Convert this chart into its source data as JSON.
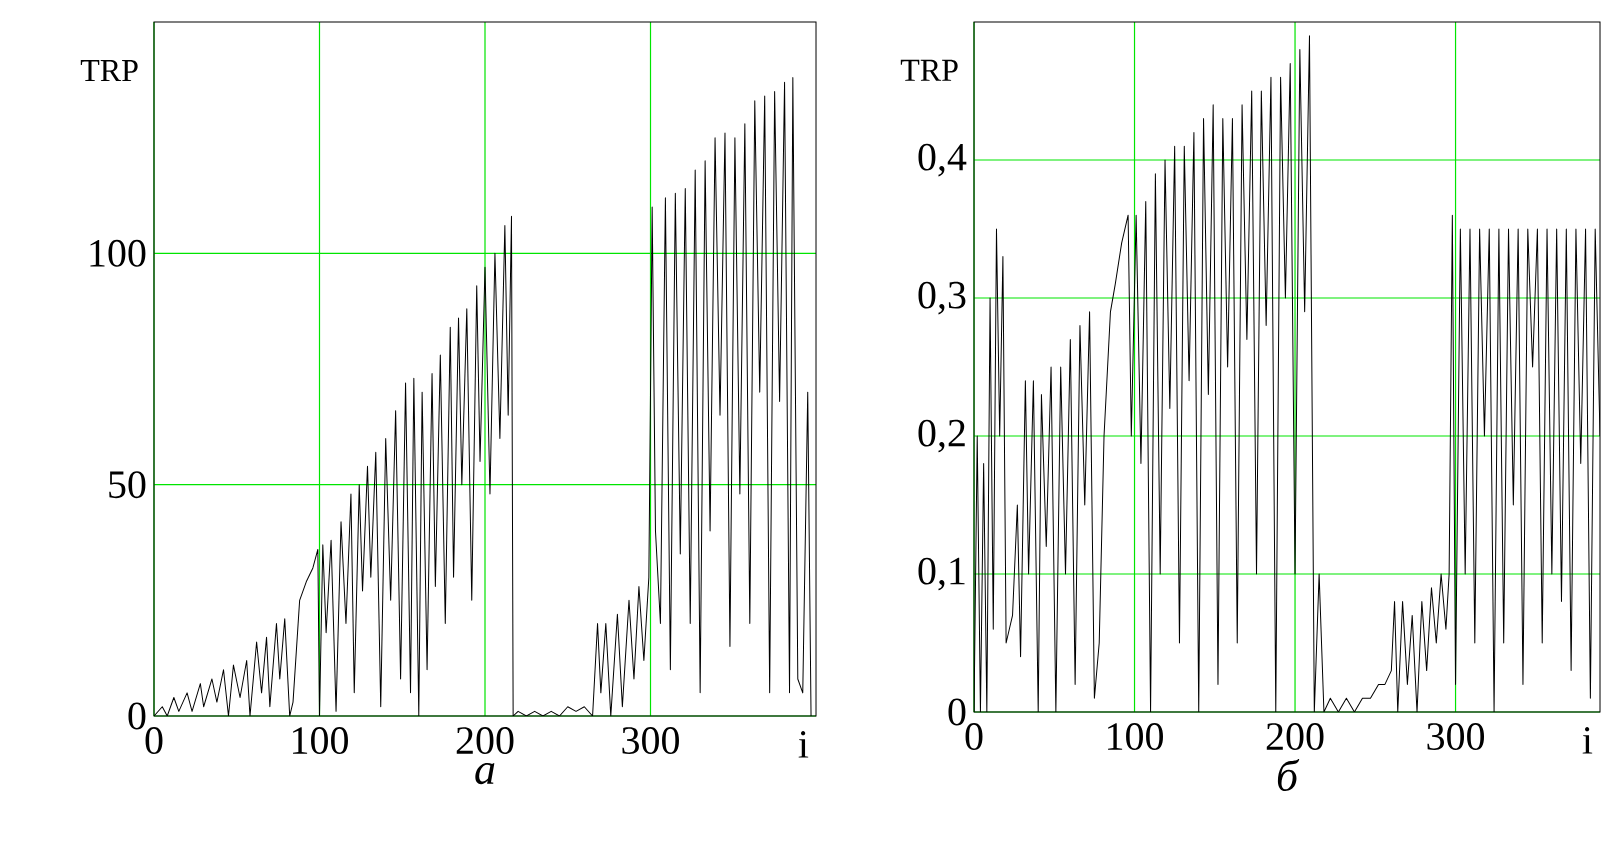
{
  "chart_data": [
    {
      "type": "line",
      "title": "а",
      "xlabel": "i",
      "ylabel": "TRP",
      "grid": true,
      "xlim": [
        0,
        400
      ],
      "ylim": [
        0,
        150
      ],
      "xticks": [
        0,
        100,
        200,
        300
      ],
      "yticks": [
        0,
        50,
        100
      ],
      "series": [
        {
          "color": "#000000",
          "x": [
            0,
            5,
            8,
            12,
            15,
            20,
            23,
            28,
            30,
            35,
            38,
            42,
            45,
            48,
            52,
            56,
            58,
            62,
            65,
            68,
            70,
            74,
            76,
            79,
            82,
            84,
            88,
            92,
            96,
            99,
            100,
            102,
            104,
            107,
            110,
            113,
            116,
            119,
            121,
            124,
            126,
            129,
            131,
            134,
            137,
            140,
            143,
            146,
            149,
            152,
            155,
            157,
            160,
            162,
            165,
            168,
            170,
            173,
            176,
            179,
            181,
            184,
            186,
            189,
            192,
            195,
            197,
            200,
            203,
            206,
            209,
            212,
            214,
            216,
            217,
            220,
            225,
            230,
            235,
            240,
            245,
            250,
            255,
            260,
            265,
            268,
            270,
            273,
            276,
            280,
            283,
            287,
            290,
            293,
            296,
            299,
            301,
            303,
            306,
            309,
            312,
            315,
            318,
            321,
            324,
            327,
            330,
            333,
            336,
            339,
            342,
            345,
            348,
            351,
            354,
            357,
            360,
            363,
            366,
            369,
            372,
            375,
            378,
            381,
            384,
            386,
            389,
            392,
            395,
            397
          ],
          "values": [
            0,
            2,
            0,
            4,
            1,
            5,
            1,
            7,
            2,
            8,
            3,
            10,
            0,
            11,
            4,
            12,
            0,
            16,
            5,
            17,
            2,
            20,
            8,
            21,
            0,
            3,
            25,
            29,
            32,
            36,
            0,
            37,
            18,
            38,
            1,
            42,
            20,
            48,
            5,
            50,
            27,
            54,
            30,
            57,
            2,
            60,
            25,
            66,
            8,
            72,
            5,
            73,
            0,
            70,
            10,
            74,
            28,
            78,
            20,
            84,
            30,
            86,
            50,
            88,
            25,
            93,
            55,
            97,
            48,
            100,
            60,
            106,
            65,
            108,
            0,
            1,
            0,
            1,
            0,
            1,
            0,
            2,
            1,
            2,
            0,
            20,
            5,
            20,
            0,
            22,
            2,
            25,
            8,
            28,
            12,
            30,
            110,
            40,
            20,
            112,
            10,
            113,
            35,
            114,
            20,
            118,
            5,
            120,
            40,
            125,
            65,
            126,
            15,
            125,
            48,
            128,
            20,
            133,
            70,
            134,
            5,
            135,
            68,
            137,
            5,
            138,
            8,
            5,
            70,
            0
          ]
        }
      ]
    },
    {
      "type": "line",
      "title": "б",
      "xlabel": "i",
      "ylabel": "TRP",
      "grid": true,
      "xlim": [
        0,
        390
      ],
      "ylim": [
        0,
        0.5
      ],
      "xticks": [
        0,
        100,
        200,
        300
      ],
      "yticks": [
        0,
        {
          "value": 0.1,
          "label": "0,1"
        },
        {
          "value": 0.2,
          "label": "0,2"
        },
        {
          "value": 0.3,
          "label": "0,3"
        },
        {
          "value": 0.4,
          "label": "0,4"
        }
      ],
      "series": [
        {
          "color": "#000000",
          "x": [
            0,
            2,
            4,
            6,
            8,
            10,
            12,
            14,
            16,
            18,
            20,
            24,
            27,
            29,
            32,
            34,
            37,
            40,
            42,
            45,
            48,
            51,
            54,
            57,
            60,
            63,
            66,
            69,
            72,
            75,
            78,
            81,
            85,
            88,
            92,
            96,
            98,
            101,
            104,
            107,
            110,
            113,
            116,
            119,
            122,
            125,
            128,
            131,
            134,
            137,
            140,
            143,
            146,
            149,
            152,
            155,
            158,
            161,
            164,
            167,
            170,
            173,
            176,
            179,
            182,
            185,
            188,
            191,
            194,
            197,
            200,
            203,
            206,
            209,
            212,
            214,
            215,
            217,
            218,
            222,
            227,
            232,
            237,
            242,
            247,
            252,
            256,
            260,
            262,
            264,
            267,
            270,
            273,
            276,
            279,
            282,
            285,
            288,
            291,
            294,
            296,
            298,
            300,
            303,
            306,
            309,
            312,
            315,
            318,
            321,
            324,
            327,
            330,
            333,
            336,
            339,
            342,
            345,
            348,
            351,
            354,
            357,
            360,
            363,
            366,
            369,
            372,
            375,
            378,
            381,
            384,
            387,
            390
          ],
          "values": [
            0,
            0.2,
            0,
            0.18,
            0,
            0.3,
            0.06,
            0.35,
            0.2,
            0.33,
            0.05,
            0.07,
            0.15,
            0.04,
            0.24,
            0.1,
            0.24,
            0,
            0.23,
            0.12,
            0.25,
            0,
            0.25,
            0.1,
            0.27,
            0.02,
            0.28,
            0.15,
            0.29,
            0.01,
            0.05,
            0.2,
            0.29,
            0.31,
            0.34,
            0.36,
            0.2,
            0.36,
            0.18,
            0.37,
            0,
            0.39,
            0.1,
            0.4,
            0.22,
            0.41,
            0.05,
            0.41,
            0.24,
            0.42,
            0,
            0.43,
            0.23,
            0.44,
            0.02,
            0.43,
            0.25,
            0.43,
            0.05,
            0.44,
            0.27,
            0.45,
            0.1,
            0.45,
            0.28,
            0.46,
            0,
            0.46,
            0.3,
            0.47,
            0.1,
            0.48,
            0.29,
            0.49,
            0,
            null,
            0.1,
            null,
            0,
            0.01,
            0,
            0.01,
            0,
            0.01,
            0.01,
            0.02,
            0.02,
            0.03,
            0.08,
            0,
            0.08,
            0.02,
            0.07,
            0,
            0.08,
            0.03,
            0.09,
            0.05,
            0.1,
            0.06,
            0.1,
            0.36,
            0.02,
            0.35,
            0.1,
            0.35,
            0.05,
            0.35,
            0.2,
            0.35,
            0,
            0.35,
            0.05,
            0.35,
            0.15,
            0.35,
            0.02,
            0.35,
            0.25,
            0.35,
            0.05,
            0.35,
            0.1,
            0.35,
            0.08,
            0.35,
            0.03,
            0.35,
            0.18,
            0.35,
            0.01,
            0.35,
            0.2
          ]
        }
      ]
    }
  ]
}
